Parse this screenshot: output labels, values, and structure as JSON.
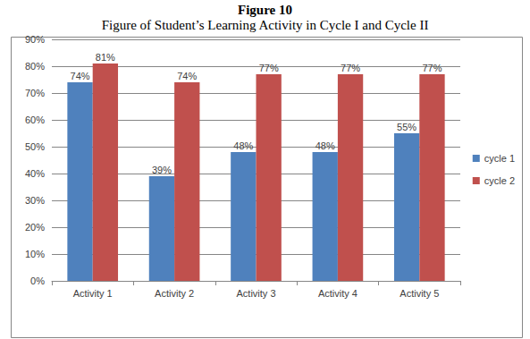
{
  "chart_data": {
    "type": "bar",
    "title": "Figure 10",
    "subtitle": "Figure of Student’s Learning Activity in Cycle I and Cycle II",
    "categories": [
      "Activity 1",
      "Activity 2",
      "Activity 3",
      "Activity 4",
      "Activity 5"
    ],
    "series": [
      {
        "name": "cycle 1",
        "color": "#4f81bd",
        "values": [
          74,
          39,
          48,
          48,
          55
        ],
        "value_labels": [
          "74%",
          "39%",
          "48%",
          "48%",
          "55%"
        ]
      },
      {
        "name": "cycle 2",
        "color": "#c0504d",
        "values": [
          81,
          74,
          77,
          77,
          77
        ],
        "value_labels": [
          "81%",
          "74%",
          "77%",
          "77%",
          "77%"
        ]
      }
    ],
    "ylim": [
      0,
      90
    ],
    "yticks": [
      {
        "value": 0,
        "label": "0%"
      },
      {
        "value": 10,
        "label": "10%"
      },
      {
        "value": 20,
        "label": "20%"
      },
      {
        "value": 30,
        "label": "30%"
      },
      {
        "value": 40,
        "label": "40%"
      },
      {
        "value": 50,
        "label": "50%"
      },
      {
        "value": 60,
        "label": "60%"
      },
      {
        "value": 70,
        "label": "70%"
      },
      {
        "value": 80,
        "label": "80%"
      },
      {
        "value": 90,
        "label": "90%"
      }
    ],
    "grid": true,
    "legend": "right",
    "data_labels": true
  }
}
